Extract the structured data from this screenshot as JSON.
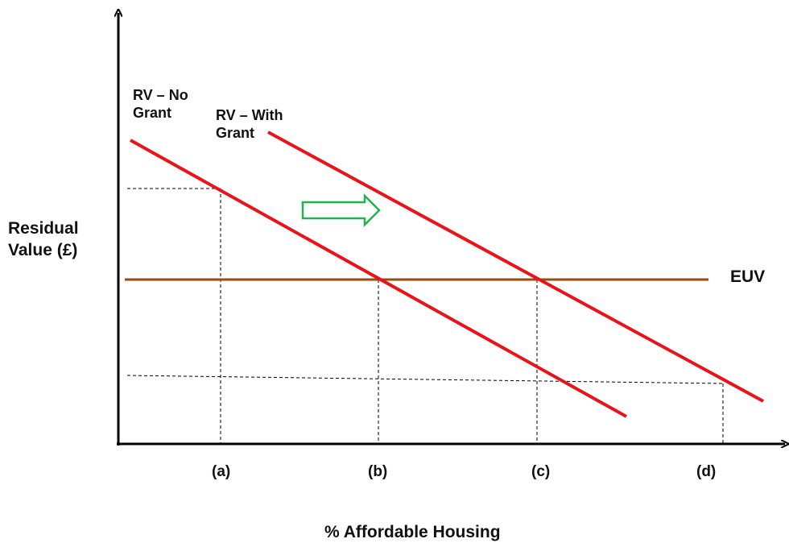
{
  "axes": {
    "y_label_line1": "Residual",
    "y_label_line2": "Value (£)",
    "x_label": "% Affordable Housing"
  },
  "lines": {
    "rv_no_grant": {
      "label_line1": "RV – No",
      "label_line2": "Grant",
      "color": "#e8141a"
    },
    "rv_with_grant": {
      "label_line1": "RV – With",
      "label_line2": "Grant",
      "color": "#e8141a"
    },
    "euv": {
      "label": "EUV",
      "color": "#9b4a12"
    }
  },
  "x_ticks": [
    "(a)",
    "(b)",
    "(c)",
    "(d)"
  ],
  "arrow": {
    "icon": "right-arrow-icon",
    "color": "#22b14c"
  },
  "colors": {
    "axis": "#000000",
    "guide": "#000000"
  }
}
